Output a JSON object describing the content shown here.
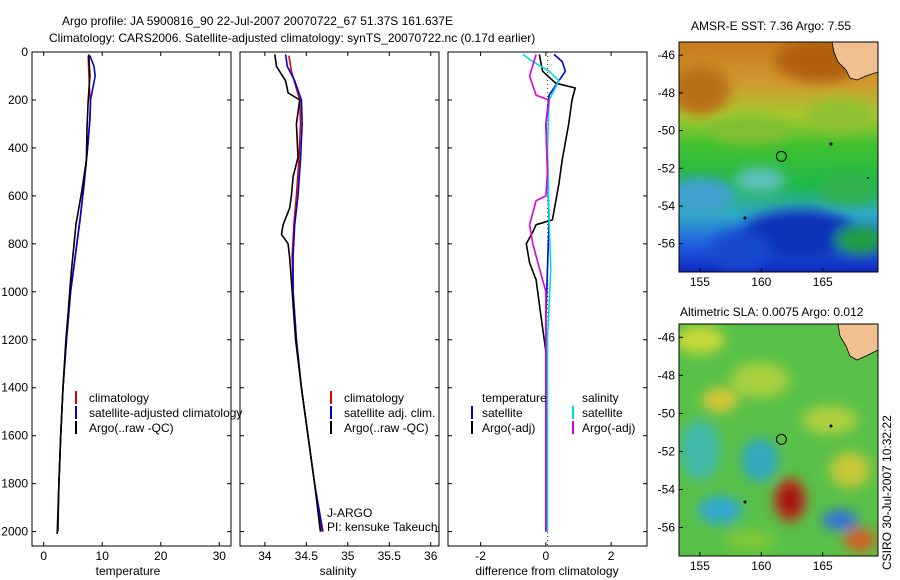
{
  "header": {
    "line1": "Argo profile: JA 5900816_90 22-Jul-2007 20070722_67 51.37S 161.637E",
    "line2": "Climatology: CARS2006. Satellite-adjusted climatology: synTS_20070722.nc (0.17d earlier)"
  },
  "credit": "CSIRO 30-Jul-2007 10:32:22",
  "chart_data": [
    {
      "id": "temperature",
      "type": "line",
      "xlabel": "temperature",
      "xlim": [
        -2,
        32
      ],
      "ylim": [
        2060,
        0
      ],
      "xticks": [
        0,
        10,
        20,
        30
      ],
      "yticks": [
        0,
        200,
        400,
        600,
        800,
        1000,
        1200,
        1400,
        1600,
        1800,
        2000
      ],
      "legend": {
        "placement": "lower-center",
        "entries": [
          {
            "label": "climatology",
            "color": "#dd0000"
          },
          {
            "label": "satellite-adjusted climatology",
            "color": "#0000dd"
          },
          {
            "label": "Argo(..raw -QC)",
            "color": "#000000"
          }
        ]
      },
      "series": [
        {
          "name": "climatology",
          "color": "#dd0000",
          "points": [
            [
              7.6,
              15
            ],
            [
              7.7,
              80
            ],
            [
              7.8,
              150
            ],
            [
              8.0,
              220
            ],
            [
              7.9,
              280
            ],
            [
              7.5,
              400
            ],
            [
              6.9,
              550
            ],
            [
              6.2,
              700
            ],
            [
              5.4,
              850
            ],
            [
              4.6,
              1000
            ],
            [
              3.9,
              1200
            ],
            [
              3.3,
              1400
            ],
            [
              2.9,
              1600
            ],
            [
              2.6,
              1800
            ],
            [
              2.4,
              2000
            ]
          ]
        },
        {
          "name": "satellite-adjusted climatology",
          "color": "#0000dd",
          "points": [
            [
              7.9,
              15
            ],
            [
              8.6,
              60
            ],
            [
              8.8,
              100
            ],
            [
              8.0,
              200
            ],
            [
              7.9,
              280
            ],
            [
              7.5,
              400
            ],
            [
              6.9,
              550
            ],
            [
              6.2,
              700
            ],
            [
              5.4,
              850
            ],
            [
              4.6,
              1000
            ],
            [
              3.9,
              1200
            ],
            [
              3.3,
              1400
            ],
            [
              2.9,
              1600
            ],
            [
              2.6,
              1800
            ],
            [
              2.4,
              2000
            ]
          ]
        },
        {
          "name": "Argo(..raw -QC)",
          "color": "#000000",
          "points": [
            [
              7.7,
              10
            ],
            [
              7.9,
              100
            ],
            [
              7.6,
              200
            ],
            [
              7.4,
              320
            ],
            [
              7.3,
              450
            ],
            [
              6.5,
              580
            ],
            [
              5.5,
              720
            ],
            [
              5.2,
              800
            ],
            [
              4.9,
              870
            ],
            [
              4.6,
              950
            ],
            [
              4.2,
              1080
            ],
            [
              3.8,
              1200
            ],
            [
              3.3,
              1400
            ],
            [
              2.9,
              1600
            ],
            [
              2.6,
              1800
            ],
            [
              2.3,
              2010
            ]
          ]
        }
      ]
    },
    {
      "id": "salinity",
      "type": "line",
      "xlabel": "salinity",
      "xlim": [
        33.7,
        36.1
      ],
      "ylim": [
        2060,
        0
      ],
      "xticks": [
        34,
        34.5,
        35,
        35.5,
        36
      ],
      "yticks": [
        0,
        200,
        400,
        600,
        800,
        1000,
        1200,
        1400,
        1600,
        1800,
        2000
      ],
      "annotation": [
        "J-ARGO",
        "PI: kensuke Takeuchi"
      ],
      "legend": {
        "placement": "lower-center",
        "entries": [
          {
            "label": "climatology",
            "color": "#dd0000"
          },
          {
            "label": "satellite adj. clim.",
            "color": "#0000dd"
          },
          {
            "label": "Argo(..raw -QC)",
            "color": "#000000"
          }
        ]
      },
      "series": [
        {
          "name": "climatology",
          "color": "#dd0000",
          "points": [
            [
              34.29,
              15
            ],
            [
              34.32,
              80
            ],
            [
              34.42,
              200
            ],
            [
              34.43,
              300
            ],
            [
              34.41,
              450
            ],
            [
              34.38,
              600
            ],
            [
              34.35,
              720
            ],
            [
              34.33,
              850
            ],
            [
              34.34,
              1000
            ],
            [
              34.38,
              1200
            ],
            [
              34.44,
              1400
            ],
            [
              34.52,
              1600
            ],
            [
              34.6,
              1800
            ],
            [
              34.68,
              2000
            ]
          ]
        },
        {
          "name": "satellite adj. clim.",
          "color": "#0000dd",
          "points": [
            [
              34.25,
              10
            ],
            [
              34.27,
              60
            ],
            [
              34.36,
              120
            ],
            [
              34.44,
              200
            ],
            [
              34.45,
              300
            ],
            [
              34.43,
              450
            ],
            [
              34.4,
              600
            ],
            [
              34.36,
              720
            ],
            [
              34.34,
              850
            ],
            [
              34.34,
              1000
            ],
            [
              34.38,
              1200
            ],
            [
              34.44,
              1400
            ],
            [
              34.52,
              1600
            ],
            [
              34.6,
              1800
            ],
            [
              34.7,
              2000
            ]
          ]
        },
        {
          "name": "Argo(..raw -QC)",
          "color": "#000000",
          "points": [
            [
              34.12,
              10
            ],
            [
              34.14,
              60
            ],
            [
              34.25,
              120
            ],
            [
              34.28,
              170
            ],
            [
              34.42,
              200
            ],
            [
              34.38,
              300
            ],
            [
              34.4,
              440
            ],
            [
              34.34,
              520
            ],
            [
              34.32,
              600
            ],
            [
              34.3,
              650
            ],
            [
              34.22,
              720
            ],
            [
              34.2,
              760
            ],
            [
              34.28,
              800
            ],
            [
              34.3,
              860
            ],
            [
              34.33,
              1000
            ],
            [
              34.37,
              1200
            ],
            [
              34.44,
              1400
            ],
            [
              34.52,
              1600
            ],
            [
              34.6,
              1800
            ],
            [
              34.67,
              2000
            ]
          ]
        }
      ]
    },
    {
      "id": "difference",
      "type": "line",
      "xlabel": "difference from climatology",
      "xlim": [
        -3,
        3.1
      ],
      "ylim": [
        2060,
        0
      ],
      "xticks": [
        -2,
        0,
        2
      ],
      "yticks": [
        0,
        200,
        400,
        600,
        800,
        1000,
        1200,
        1400,
        1600,
        1800,
        2000
      ],
      "legend": {
        "placement": "lower-center",
        "col1_title": "temperature",
        "col2_title": "salinity",
        "entries": [
          {
            "label": "satellite",
            "color": "#0000dd",
            "col": 1
          },
          {
            "label": "Argo(-adj)",
            "color": "#000000",
            "col": 1
          },
          {
            "label": "satellite",
            "color": "#00dddd",
            "col": 2
          },
          {
            "label": "Argo(-adj)",
            "color": "#dd00dd",
            "col": 2
          }
        ]
      },
      "series": [
        {
          "name": "temperature satellite",
          "color": "#0000dd",
          "points": [
            [
              0.25,
              10
            ],
            [
              0.5,
              40
            ],
            [
              0.6,
              80
            ],
            [
              0.1,
              180
            ],
            [
              0.0,
              300
            ],
            [
              0.05,
              500
            ],
            [
              0.1,
              700
            ],
            [
              0.05,
              900
            ],
            [
              0.0,
              1100
            ],
            [
              0.0,
              1500
            ],
            [
              0.0,
              2000
            ]
          ]
        },
        {
          "name": "temperature Argo(-adj)",
          "color": "#000000",
          "points": [
            [
              -0.2,
              10
            ],
            [
              -0.1,
              80
            ],
            [
              0.3,
              130
            ],
            [
              0.9,
              150
            ],
            [
              0.8,
              200
            ],
            [
              0.7,
              300
            ],
            [
              0.5,
              450
            ],
            [
              0.4,
              550
            ],
            [
              0.2,
              700
            ],
            [
              -0.3,
              720
            ],
            [
              -0.4,
              750
            ],
            [
              -0.6,
              800
            ],
            [
              -0.5,
              880
            ],
            [
              -0.3,
              950
            ],
            [
              -0.2,
              1050
            ],
            [
              0.0,
              1250
            ],
            [
              0.0,
              1500
            ],
            [
              0.0,
              2000
            ]
          ]
        },
        {
          "name": "salinity satellite",
          "color": "#00dddd",
          "points": [
            [
              -0.7,
              10
            ],
            [
              -0.4,
              40
            ],
            [
              0.1,
              80
            ],
            [
              0.4,
              120
            ],
            [
              0.1,
              200
            ],
            [
              0.05,
              400
            ],
            [
              0.1,
              700
            ],
            [
              0.15,
              900
            ],
            [
              0.05,
              1200
            ],
            [
              0.05,
              1600
            ],
            [
              0.05,
              2000
            ]
          ]
        },
        {
          "name": "salinity Argo(-adj)",
          "color": "#dd00dd",
          "points": [
            [
              -0.3,
              10
            ],
            [
              -0.5,
              100
            ],
            [
              -0.3,
              180
            ],
            [
              0.1,
              200
            ],
            [
              0.0,
              300
            ],
            [
              0.05,
              500
            ],
            [
              0.0,
              600
            ],
            [
              -0.3,
              620
            ],
            [
              -0.5,
              720
            ],
            [
              -0.4,
              800
            ],
            [
              -0.2,
              900
            ],
            [
              0.0,
              1000
            ],
            [
              0.0,
              1400
            ],
            [
              0.0,
              2000
            ]
          ]
        }
      ]
    },
    {
      "id": "sst-map",
      "type": "heatmap",
      "title": "AMSR-E SST: 7.36 Argo: 7.55",
      "xlim": [
        153.3,
        169.5
      ],
      "ylim": [
        -57.5,
        -45.3
      ],
      "xticks": [
        155,
        160,
        165
      ],
      "yticks": [
        -46,
        -48,
        -50,
        -52,
        -54,
        -56
      ],
      "marker": {
        "lon": 161.637,
        "lat": -51.37
      }
    },
    {
      "id": "sla-map",
      "type": "heatmap",
      "title": "Altimetric SLA: 0.0075 Argo: 0.012",
      "xlim": [
        153.3,
        169.5
      ],
      "ylim": [
        -57.5,
        -45.3
      ],
      "xticks": [
        155,
        160,
        165
      ],
      "yticks": [
        -46,
        -48,
        -50,
        -52,
        -54,
        -56
      ],
      "marker": {
        "lon": 161.637,
        "lat": -51.37
      }
    }
  ]
}
